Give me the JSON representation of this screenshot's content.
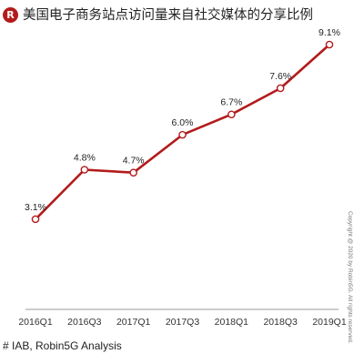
{
  "header": {
    "logo_letter": "R",
    "title": "美国电子商务站点访问量来自社交媒体的分享比例"
  },
  "footer": {
    "source": "# IAB, Robin5G Analysis",
    "copyright": "Copyright @ 2020 by Robin5G. All rights reserved."
  },
  "colors": {
    "line": "#b31b1b",
    "accent": "#b31b1b",
    "axis": "#999999"
  },
  "chart_data": {
    "type": "line",
    "title": "美国电子商务站点访问量来自社交媒体的分享比例",
    "categories": [
      "2016Q1",
      "2016Q3",
      "2017Q1",
      "2017Q3",
      "2018Q1",
      "2018Q3",
      "2019Q1"
    ],
    "x_tick_labels": [
      "2016Q1",
      "2016Q3",
      "2017Q1",
      "2017Q3",
      "2018Q1",
      "2018Q3",
      "2019Q1"
    ],
    "series": [
      {
        "values": [
          3.1,
          4.8,
          4.7,
          6.0,
          6.7,
          7.6,
          9.1
        ],
        "labels": [
          "3.1%",
          "4.8%",
          "4.7%",
          "6.0%",
          "6.7%",
          "7.6%",
          "9.1%"
        ]
      }
    ],
    "ylim": [
      0,
      9.6
    ],
    "grid": false,
    "legend": "none",
    "xlabel": "",
    "ylabel": ""
  }
}
